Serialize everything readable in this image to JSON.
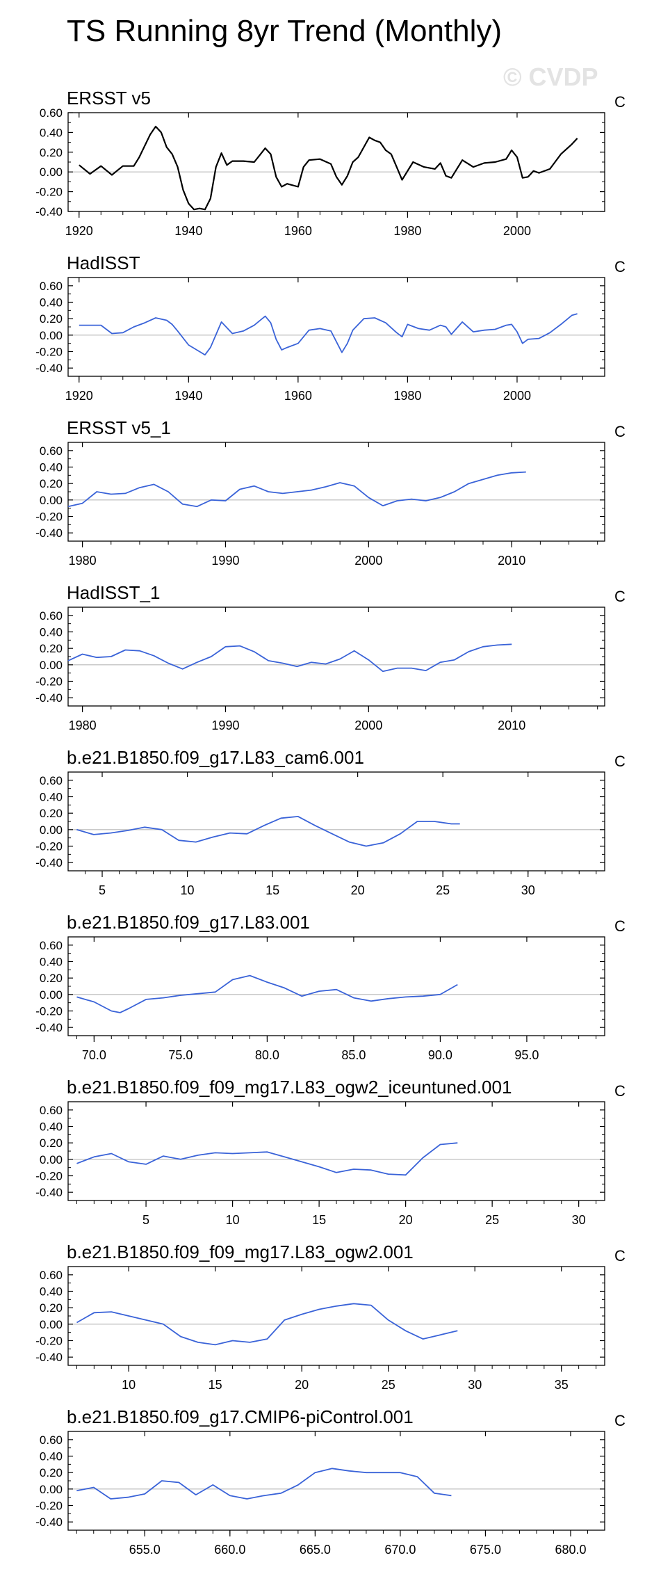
{
  "page_title": "TS Running 8yr Trend (Monthly)",
  "watermark": "© CVDP",
  "chart_data": [
    {
      "type": "line",
      "title": "ERSST v5",
      "units": "C",
      "color": "#000000",
      "xlim": [
        1918,
        2016
      ],
      "ylim": [
        -0.4,
        0.6
      ],
      "yticks": [
        -0.4,
        -0.2,
        0.0,
        0.2,
        0.4,
        0.6
      ],
      "ytick_labels": [
        "-0.40",
        "-0.20",
        "0.00",
        "0.20",
        "0.40",
        "0.60"
      ],
      "xticks": [
        1920,
        1940,
        1960,
        1980,
        2000
      ],
      "xtick_labels": [
        "1920",
        "1940",
        "1960",
        "1980",
        "2000"
      ],
      "x": [
        1920,
        1922,
        1924,
        1926,
        1928,
        1930,
        1931,
        1933,
        1934,
        1935,
        1936,
        1937,
        1938,
        1939,
        1940,
        1941,
        1942,
        1943,
        1944,
        1945,
        1946,
        1947,
        1948,
        1950,
        1952,
        1954,
        1955,
        1956,
        1957,
        1958,
        1960,
        1961,
        1962,
        1964,
        1966,
        1967,
        1968,
        1969,
        1970,
        1971,
        1973,
        1974,
        1975,
        1976,
        1977,
        1978,
        1979,
        1981,
        1983,
        1985,
        1986,
        1987,
        1988,
        1990,
        1992,
        1994,
        1996,
        1998,
        1999,
        2000,
        2001,
        2002,
        2003,
        2004,
        2006,
        2008,
        2010,
        2011
      ],
      "values": [
        0.07,
        -0.02,
        0.06,
        -0.03,
        0.06,
        0.06,
        0.15,
        0.38,
        0.46,
        0.4,
        0.25,
        0.18,
        0.05,
        -0.18,
        -0.32,
        -0.38,
        -0.37,
        -0.38,
        -0.27,
        0.05,
        0.19,
        0.07,
        0.11,
        0.11,
        0.1,
        0.24,
        0.18,
        -0.05,
        -0.15,
        -0.12,
        -0.15,
        0.05,
        0.12,
        0.13,
        0.08,
        -0.05,
        -0.13,
        -0.04,
        0.1,
        0.15,
        0.35,
        0.32,
        0.3,
        0.22,
        0.18,
        0.05,
        -0.08,
        0.1,
        0.05,
        0.03,
        0.09,
        -0.04,
        -0.06,
        0.12,
        0.05,
        0.09,
        0.1,
        0.13,
        0.22,
        0.15,
        -0.06,
        -0.05,
        0.01,
        -0.01,
        0.03,
        0.18,
        0.28,
        0.34
      ]
    },
    {
      "type": "line",
      "title": "HadISST",
      "units": "C",
      "color": "#3a63d8",
      "xlim": [
        1918,
        2016
      ],
      "ylim": [
        -0.5,
        0.7
      ],
      "yticks": [
        -0.4,
        -0.2,
        0.0,
        0.2,
        0.4,
        0.6
      ],
      "ytick_labels": [
        "-0.40",
        "-0.20",
        "0.00",
        "0.20",
        "0.40",
        "0.60"
      ],
      "xticks": [
        1920,
        1940,
        1960,
        1980,
        2000
      ],
      "xtick_labels": [
        "1920",
        "1940",
        "1960",
        "1980",
        "2000"
      ],
      "x": [
        1920,
        1922,
        1924,
        1926,
        1928,
        1930,
        1932,
        1934,
        1936,
        1937,
        1938,
        1940,
        1942,
        1943,
        1944,
        1946,
        1948,
        1950,
        1952,
        1954,
        1955,
        1956,
        1957,
        1958,
        1960,
        1962,
        1964,
        1966,
        1967,
        1968,
        1969,
        1970,
        1972,
        1974,
        1976,
        1978,
        1979,
        1980,
        1982,
        1984,
        1986,
        1987,
        1988,
        1990,
        1992,
        1994,
        1996,
        1998,
        1999,
        2000,
        2001,
        2002,
        2004,
        2006,
        2008,
        2010,
        2011
      ],
      "values": [
        0.12,
        0.12,
        0.12,
        0.02,
        0.03,
        0.1,
        0.15,
        0.21,
        0.18,
        0.13,
        0.05,
        -0.12,
        -0.2,
        -0.24,
        -0.15,
        0.16,
        0.02,
        0.05,
        0.12,
        0.23,
        0.15,
        -0.05,
        -0.18,
        -0.15,
        -0.1,
        0.06,
        0.08,
        0.05,
        -0.08,
        -0.21,
        -0.1,
        0.06,
        0.2,
        0.21,
        0.15,
        0.03,
        -0.02,
        0.13,
        0.08,
        0.06,
        0.12,
        0.1,
        0.01,
        0.16,
        0.04,
        0.06,
        0.07,
        0.12,
        0.13,
        0.04,
        -0.1,
        -0.05,
        -0.04,
        0.03,
        0.13,
        0.24,
        0.26
      ]
    },
    {
      "type": "line",
      "title": "ERSST v5_1",
      "units": "C",
      "color": "#3a63d8",
      "xlim": [
        1979,
        2016.5
      ],
      "ylim": [
        -0.5,
        0.7
      ],
      "yticks": [
        -0.4,
        -0.2,
        0.0,
        0.2,
        0.4,
        0.6
      ],
      "ytick_labels": [
        "-0.40",
        "-0.20",
        "0.00",
        "0.20",
        "0.40",
        "0.60"
      ],
      "xticks": [
        1980,
        1990,
        2000,
        2010
      ],
      "xtick_labels": [
        "1980",
        "1990",
        "2000",
        "2010"
      ],
      "x": [
        1979,
        1980,
        1981,
        1982,
        1983,
        1984,
        1985,
        1986,
        1987,
        1988,
        1989,
        1990,
        1991,
        1992,
        1993,
        1994,
        1995,
        1996,
        1997,
        1998,
        1999,
        2000,
        2001,
        2002,
        2003,
        2004,
        2005,
        2006,
        2007,
        2008,
        2009,
        2010,
        2011
      ],
      "values": [
        -0.08,
        -0.04,
        0.1,
        0.07,
        0.08,
        0.15,
        0.19,
        0.1,
        -0.05,
        -0.08,
        0.0,
        -0.01,
        0.13,
        0.17,
        0.1,
        0.08,
        0.1,
        0.12,
        0.16,
        0.21,
        0.17,
        0.03,
        -0.07,
        -0.01,
        0.01,
        -0.01,
        0.03,
        0.1,
        0.2,
        0.25,
        0.3,
        0.33,
        0.34
      ]
    },
    {
      "type": "line",
      "title": "HadISST_1",
      "units": "C",
      "color": "#3a63d8",
      "xlim": [
        1979,
        2016.5
      ],
      "ylim": [
        -0.5,
        0.7
      ],
      "yticks": [
        -0.4,
        -0.2,
        0.0,
        0.2,
        0.4,
        0.6
      ],
      "ytick_labels": [
        "-0.40",
        "-0.20",
        "0.00",
        "0.20",
        "0.40",
        "0.60"
      ],
      "xticks": [
        1980,
        1990,
        2000,
        2010
      ],
      "xtick_labels": [
        "1980",
        "1990",
        "2000",
        "2010"
      ],
      "x": [
        1979,
        1980,
        1981,
        1982,
        1983,
        1984,
        1985,
        1986,
        1987,
        1988,
        1989,
        1990,
        1991,
        1992,
        1993,
        1994,
        1995,
        1996,
        1997,
        1998,
        1999,
        2000,
        2001,
        2002,
        2003,
        2004,
        2005,
        2006,
        2007,
        2008,
        2009,
        2010
      ],
      "values": [
        0.05,
        0.13,
        0.09,
        0.1,
        0.18,
        0.17,
        0.11,
        0.02,
        -0.05,
        0.03,
        0.1,
        0.22,
        0.23,
        0.16,
        0.05,
        0.02,
        -0.02,
        0.03,
        0.01,
        0.07,
        0.17,
        0.06,
        -0.08,
        -0.04,
        -0.04,
        -0.07,
        0.03,
        0.06,
        0.16,
        0.22,
        0.24,
        0.25
      ]
    },
    {
      "type": "line",
      "title": "b.e21.B1850.f09_g17.L83_cam6.001",
      "units": "C",
      "color": "#3a63d8",
      "xlim": [
        3,
        34.5
      ],
      "ylim": [
        -0.5,
        0.7
      ],
      "yticks": [
        -0.4,
        -0.2,
        0.0,
        0.2,
        0.4,
        0.6
      ],
      "ytick_labels": [
        "-0.40",
        "-0.20",
        "0.00",
        "0.20",
        "0.40",
        "0.60"
      ],
      "xticks": [
        5,
        10,
        15,
        20,
        25,
        30
      ],
      "xtick_labels": [
        "5",
        "10",
        "15",
        "20",
        "25",
        "30"
      ],
      "x": [
        3.5,
        4.5,
        5.5,
        6.5,
        7.5,
        8.5,
        9.5,
        10.5,
        11.5,
        12.5,
        13.5,
        14.5,
        15.5,
        16.5,
        17.5,
        18.5,
        19.5,
        20.5,
        21.5,
        22.5,
        23.5,
        24.5,
        25.5,
        26
      ],
      "values": [
        0.0,
        -0.06,
        -0.04,
        -0.01,
        0.03,
        0.0,
        -0.13,
        -0.15,
        -0.09,
        -0.04,
        -0.05,
        0.05,
        0.14,
        0.16,
        0.05,
        -0.05,
        -0.15,
        -0.2,
        -0.16,
        -0.05,
        0.1,
        0.1,
        0.07,
        0.07
      ]
    },
    {
      "type": "line",
      "title": "b.e21.B1850.f09_g17.L83.001",
      "units": "C",
      "color": "#3a63d8",
      "xlim": [
        68.5,
        99.5
      ],
      "ylim": [
        -0.5,
        0.7
      ],
      "yticks": [
        -0.4,
        -0.2,
        0.0,
        0.2,
        0.4,
        0.6
      ],
      "ytick_labels": [
        "-0.40",
        "-0.20",
        "0.00",
        "0.20",
        "0.40",
        "0.60"
      ],
      "xticks": [
        70,
        75,
        80,
        85,
        90,
        95
      ],
      "xtick_labels": [
        "70.0",
        "75.0",
        "80.0",
        "85.0",
        "90.0",
        "95.0"
      ],
      "x": [
        69,
        70,
        71,
        71.5,
        72,
        73,
        74,
        75,
        76,
        77,
        78,
        79,
        80,
        81,
        82,
        83,
        84,
        85,
        86,
        87,
        88,
        89,
        90,
        91
      ],
      "values": [
        -0.03,
        -0.09,
        -0.2,
        -0.22,
        -0.17,
        -0.06,
        -0.04,
        -0.01,
        0.01,
        0.03,
        0.18,
        0.23,
        0.15,
        0.08,
        -0.02,
        0.04,
        0.06,
        -0.04,
        -0.08,
        -0.05,
        -0.03,
        -0.02,
        0.0,
        0.12
      ]
    },
    {
      "type": "line",
      "title": "b.e21.B1850.f09_f09_mg17.L83_ogw2_iceuntuned.001",
      "units": "C",
      "color": "#3a63d8",
      "xlim": [
        0.5,
        31.5
      ],
      "ylim": [
        -0.5,
        0.7
      ],
      "yticks": [
        -0.4,
        -0.2,
        0.0,
        0.2,
        0.4,
        0.6
      ],
      "ytick_labels": [
        "-0.40",
        "-0.20",
        "0.00",
        "0.20",
        "0.40",
        "0.60"
      ],
      "xticks": [
        5,
        10,
        15,
        20,
        25,
        30
      ],
      "xtick_labels": [
        "5",
        "10",
        "15",
        "20",
        "25",
        "30"
      ],
      "x": [
        1,
        2,
        3,
        4,
        5,
        6,
        7,
        8,
        9,
        10,
        11,
        12,
        13,
        14,
        15,
        16,
        17,
        18,
        19,
        20,
        21,
        22,
        23
      ],
      "values": [
        -0.05,
        0.03,
        0.07,
        -0.03,
        -0.06,
        0.04,
        0.0,
        0.05,
        0.08,
        0.07,
        0.08,
        0.09,
        0.03,
        -0.03,
        -0.09,
        -0.16,
        -0.12,
        -0.13,
        -0.18,
        -0.19,
        0.02,
        0.18,
        0.2
      ]
    },
    {
      "type": "line",
      "title": "b.e21.B1850.f09_f09_mg17.L83_ogw2.001",
      "units": "C",
      "color": "#3a63d8",
      "xlim": [
        6.5,
        37.5
      ],
      "ylim": [
        -0.5,
        0.7
      ],
      "yticks": [
        -0.4,
        -0.2,
        0.0,
        0.2,
        0.4,
        0.6
      ],
      "ytick_labels": [
        "-0.40",
        "-0.20",
        "0.00",
        "0.20",
        "0.40",
        "0.60"
      ],
      "xticks": [
        10,
        15,
        20,
        25,
        30,
        35
      ],
      "xtick_labels": [
        "10",
        "15",
        "20",
        "25",
        "30",
        "35"
      ],
      "x": [
        7,
        8,
        9,
        10,
        11,
        12,
        13,
        14,
        15,
        16,
        17,
        18,
        19,
        20,
        21,
        22,
        23,
        24,
        25,
        26,
        27,
        28,
        29
      ],
      "values": [
        0.02,
        0.14,
        0.15,
        0.1,
        0.05,
        0.0,
        -0.15,
        -0.22,
        -0.25,
        -0.2,
        -0.22,
        -0.18,
        0.05,
        0.12,
        0.18,
        0.22,
        0.25,
        0.23,
        0.05,
        -0.08,
        -0.18,
        -0.13,
        -0.08
      ]
    },
    {
      "type": "line",
      "title": "b.e21.B1850.f09_g17.CMIP6-piControl.001",
      "units": "C",
      "color": "#3a63d8",
      "xlim": [
        650.5,
        682
      ],
      "ylim": [
        -0.5,
        0.7
      ],
      "yticks": [
        -0.4,
        -0.2,
        0.0,
        0.2,
        0.4,
        0.6
      ],
      "ytick_labels": [
        "-0.40",
        "-0.20",
        "0.00",
        "0.20",
        "0.40",
        "0.60"
      ],
      "xticks": [
        655,
        660,
        665,
        670,
        675,
        680
      ],
      "xtick_labels": [
        "655.0",
        "660.0",
        "665.0",
        "670.0",
        "675.0",
        "680.0"
      ],
      "x": [
        651,
        652,
        653,
        654,
        655,
        656,
        657,
        658,
        659,
        660,
        661,
        662,
        663,
        664,
        665,
        666,
        667,
        668,
        669,
        670,
        671,
        672,
        673
      ],
      "values": [
        -0.02,
        0.02,
        -0.12,
        -0.1,
        -0.06,
        0.1,
        0.08,
        -0.07,
        0.05,
        -0.08,
        -0.12,
        -0.08,
        -0.05,
        0.05,
        0.2,
        0.25,
        0.22,
        0.2,
        0.2,
        0.2,
        0.15,
        -0.05,
        -0.08
      ]
    }
  ]
}
